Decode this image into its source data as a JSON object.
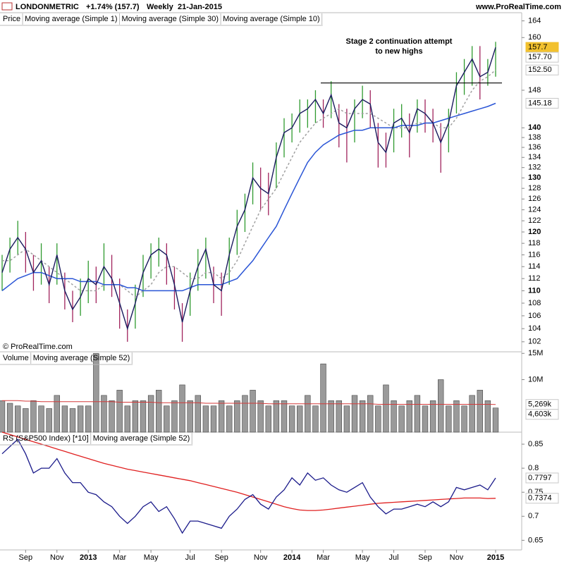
{
  "header": {
    "symbol": "LONDONMETRIC",
    "change": "+1.74% (157.7)",
    "period": "Weekly",
    "date": "21-Jan-2015",
    "site": "www.ProRealTime.com",
    "copyright": "© ProRealTime.com"
  },
  "chart_data": [
    {
      "type": "ohlc",
      "log_scale": true,
      "legend": [
        "Price",
        "Moving average (Simple 1)",
        "Moving average (Simple 30)",
        "Moving average (Simple 10)"
      ],
      "annotation": [
        "Stage 2 continuation attempt",
        "to new highs"
      ],
      "resistance_level": 149.6,
      "ylim": [
        100.5,
        166
      ],
      "yticks": [
        102,
        104,
        106,
        108,
        110,
        112,
        114,
        116,
        118,
        120,
        122,
        124,
        126,
        128,
        130,
        132,
        134,
        136,
        138,
        140,
        148,
        160,
        164
      ],
      "major_yticks": [
        110,
        120,
        130,
        140
      ],
      "up_color": "#2f9a2f",
      "down_color": "#a0235c",
      "high": [
        116,
        119,
        122,
        120,
        116,
        118,
        114,
        118,
        113,
        110,
        112,
        115,
        114,
        118,
        116,
        112,
        107,
        111,
        116,
        118,
        119,
        118,
        114,
        108,
        113,
        117,
        119,
        114,
        113,
        119,
        124,
        127,
        133,
        132,
        131,
        137,
        142,
        143,
        146,
        146,
        148,
        146,
        150,
        145,
        144,
        146,
        149,
        148,
        141,
        139,
        144,
        145,
        143,
        146,
        146,
        144,
        141,
        144,
        152,
        155,
        158,
        158,
        155,
        159
      ],
      "low": [
        110,
        113,
        116,
        113,
        110,
        111,
        108,
        111,
        107,
        105,
        106,
        108,
        108,
        110,
        109,
        104,
        102,
        104,
        109,
        112,
        114,
        111,
        107,
        102,
        106,
        110,
        112,
        108,
        106,
        111,
        116,
        120,
        125,
        124,
        123,
        128,
        134,
        137,
        139,
        140,
        141,
        140,
        142,
        136,
        133,
        137,
        142,
        140,
        132,
        132,
        135,
        138,
        134,
        139,
        139,
        137,
        131,
        135,
        143,
        147,
        149,
        146,
        149,
        151
      ],
      "series": [
        {
          "name": "Moving average (Simple 1)",
          "color": "#1a1a5e",
          "dash": false,
          "values": [
            113,
            117,
            119,
            117,
            113,
            115,
            111,
            116,
            110,
            107,
            109,
            112,
            111,
            114,
            112,
            108,
            104,
            108,
            113,
            116,
            117,
            116,
            111,
            105,
            110,
            114,
            117,
            111,
            110,
            116,
            121,
            124,
            130,
            128,
            127,
            134,
            139,
            140,
            143,
            144,
            146,
            143,
            147,
            141,
            140,
            144,
            146,
            145,
            137,
            135,
            141,
            142,
            139,
            144,
            143,
            141,
            137,
            141,
            149,
            152,
            155,
            151,
            152,
            157.7
          ]
        },
        {
          "name": "Moving average (Simple 30)",
          "color": "#2a55d6",
          "dash": false,
          "values": [
            110,
            111,
            112,
            112.5,
            113,
            113,
            112.5,
            112,
            112,
            112,
            111.5,
            111.5,
            111.5,
            111,
            111,
            111,
            110.5,
            110.5,
            110,
            110,
            110,
            110,
            110,
            110,
            110.5,
            111,
            111,
            111,
            111,
            111.5,
            112,
            113.5,
            115,
            117,
            119,
            121,
            124,
            127,
            130,
            133,
            135,
            136.5,
            137.5,
            138.5,
            139,
            139.5,
            139.5,
            140,
            140,
            140,
            140,
            140.5,
            140.5,
            140.5,
            141,
            141,
            141.5,
            142,
            142.5,
            143,
            143.5,
            144,
            144.5,
            145.18
          ]
        },
        {
          "name": "Moving average (Simple 10)",
          "color": "#a0a0a0",
          "dash": true,
          "values": [
            115,
            115,
            116,
            117,
            116,
            115,
            114,
            113,
            112,
            111,
            110,
            110,
            110,
            111,
            111,
            111,
            110,
            109,
            110,
            111,
            113,
            114,
            114,
            113,
            112,
            112,
            113,
            113,
            112,
            113,
            115,
            118,
            121,
            124,
            126,
            128,
            131,
            134,
            137,
            139,
            141,
            142,
            143,
            144,
            143,
            143,
            143,
            143,
            142,
            141,
            140,
            140,
            140,
            141,
            141,
            141,
            140,
            140,
            142,
            145,
            148,
            150,
            151,
            152.5
          ]
        }
      ],
      "markers": [
        {
          "value": 157.7,
          "label": "157.7",
          "color": "#000",
          "bg": "#f2c12e"
        },
        {
          "value": 157.7,
          "label": "157.70",
          "color": "#1a1a5e",
          "bg": "#fff"
        },
        {
          "value": 152.5,
          "label": "152.50",
          "color": "#999",
          "bg": "#fff"
        },
        {
          "value": 145.18,
          "label": "145.18",
          "color": "#2a55d6",
          "bg": "#fff"
        }
      ]
    },
    {
      "type": "bar",
      "legend": [
        "Volume",
        "Moving average (Simple 52)"
      ],
      "ylim": [
        0,
        15.3
      ],
      "yticks": [
        {
          "value": 15,
          "label": "15M"
        },
        {
          "value": 10,
          "label": "10M"
        }
      ],
      "color": "#9a9a9a",
      "values": [
        6,
        5.5,
        5,
        4.5,
        6,
        5,
        4.5,
        7,
        5,
        4.5,
        5,
        5,
        15,
        7,
        6,
        8,
        5,
        6,
        6,
        7,
        8,
        5,
        6,
        9,
        6,
        7,
        5,
        5,
        6,
        5,
        6,
        7,
        8,
        6,
        5,
        6,
        6,
        5,
        5,
        7,
        5,
        13,
        6,
        6,
        5,
        7,
        6,
        7,
        5,
        9,
        6,
        5,
        6,
        7,
        5,
        6,
        10,
        5,
        6,
        5,
        7,
        8,
        6,
        4.603
      ],
      "ma": {
        "color": "#d43a3a",
        "values": [
          6,
          6,
          6,
          5.9,
          5.9,
          5.8,
          5.8,
          5.8,
          5.8,
          5.8,
          5.8,
          5.8,
          5.8,
          5.8,
          5.8,
          5.7,
          5.7,
          5.7,
          5.7,
          5.7,
          5.6,
          5.6,
          5.6,
          5.6,
          5.6,
          5.6,
          5.5,
          5.5,
          5.5,
          5.5,
          5.5,
          5.5,
          5.5,
          5.5,
          5.4,
          5.4,
          5.4,
          5.4,
          5.4,
          5.4,
          5.4,
          5.4,
          5.4,
          5.4,
          5.4,
          5.4,
          5.4,
          5.4,
          5.3,
          5.3,
          5.3,
          5.3,
          5.3,
          5.3,
          5.3,
          5.3,
          5.3,
          5.3,
          5.3,
          5.3,
          5.3,
          5.3,
          5.3,
          5.269
        ]
      },
      "markers": [
        {
          "value": 5.269,
          "label": "5,269k",
          "color": "#d43a3a",
          "bg": "#fff"
        },
        {
          "value": 4.603,
          "label": "4,603k",
          "color": "#777",
          "bg": "#fff"
        }
      ]
    },
    {
      "type": "line",
      "legend": [
        "RS (S&P500 Index) [*10]",
        "Moving average (Simple 52)"
      ],
      "ylim": [
        0.63,
        0.875
      ],
      "yticks": [
        0.85,
        0.8,
        0.75,
        0.7,
        0.65
      ],
      "categories": [
        null,
        null,
        null,
        "Sep",
        null,
        null,
        null,
        "Nov",
        null,
        null,
        null,
        "2013",
        null,
        null,
        null,
        "Mar",
        null,
        null,
        null,
        "May",
        null,
        null,
        null,
        null,
        "Jul",
        null,
        null,
        null,
        "Sep",
        null,
        null,
        null,
        null,
        "Nov",
        null,
        null,
        null,
        "2014",
        null,
        null,
        null,
        "Mar",
        null,
        null,
        null,
        null,
        "May",
        null,
        null,
        null,
        "Jul",
        null,
        null,
        null,
        "Sep",
        null,
        null,
        null,
        "Nov",
        null,
        null,
        null,
        null,
        "2015"
      ],
      "series": [
        {
          "name": "RS (S&P500 Index) [*10]",
          "color": "#1a1a8a",
          "values": [
            0.83,
            0.845,
            0.86,
            0.83,
            0.79,
            0.8,
            0.8,
            0.82,
            0.79,
            0.77,
            0.77,
            0.75,
            0.745,
            0.73,
            0.72,
            0.7,
            0.685,
            0.7,
            0.72,
            0.73,
            0.71,
            0.72,
            0.695,
            0.665,
            0.69,
            0.69,
            0.685,
            0.68,
            0.675,
            0.7,
            0.715,
            0.735,
            0.745,
            0.725,
            0.715,
            0.74,
            0.755,
            0.78,
            0.765,
            0.79,
            0.775,
            0.78,
            0.765,
            0.755,
            0.75,
            0.76,
            0.77,
            0.74,
            0.72,
            0.705,
            0.715,
            0.715,
            0.72,
            0.725,
            0.72,
            0.73,
            0.72,
            0.73,
            0.76,
            0.755,
            0.76,
            0.765,
            0.755,
            0.7797
          ]
        },
        {
          "name": "Moving average (Simple 52)",
          "color": "#e02020",
          "values": [
            0.875,
            0.87,
            0.865,
            0.86,
            0.855,
            0.85,
            0.845,
            0.84,
            0.835,
            0.83,
            0.825,
            0.82,
            0.815,
            0.81,
            0.806,
            0.802,
            0.798,
            0.795,
            0.792,
            0.789,
            0.786,
            0.783,
            0.78,
            0.777,
            0.774,
            0.77,
            0.766,
            0.762,
            0.758,
            0.754,
            0.75,
            0.745,
            0.74,
            0.735,
            0.73,
            0.725,
            0.72,
            0.716,
            0.713,
            0.712,
            0.712,
            0.713,
            0.715,
            0.717,
            0.719,
            0.721,
            0.723,
            0.725,
            0.727,
            0.728,
            0.729,
            0.73,
            0.731,
            0.732,
            0.733,
            0.734,
            0.735,
            0.736,
            0.737,
            0.738,
            0.738,
            0.738,
            0.737,
            0.7374
          ]
        }
      ],
      "markers": [
        {
          "value": 0.7797,
          "label": "0.7797",
          "color": "#1a1a8a",
          "bg": "#fff"
        },
        {
          "value": 0.7374,
          "label": "0.7374",
          "color": "#e02020",
          "bg": "#fff"
        }
      ]
    }
  ]
}
